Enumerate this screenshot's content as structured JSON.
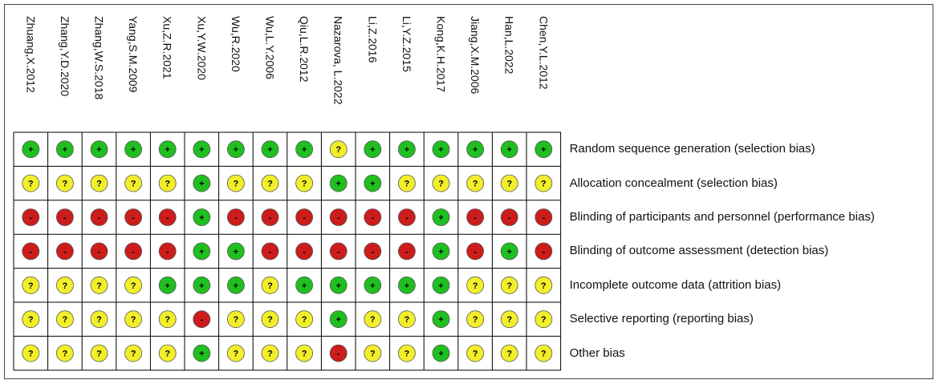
{
  "chart_data": {
    "type": "table",
    "studies": [
      "Zhuang,X.2012",
      "Zhang,Y.D.2020",
      "Zhang,W.S.2018",
      "Yang,S.M.2009",
      "Xu,Z.R.2021",
      "Xu,Y.W.2020",
      "Wu,R.2020",
      "Wu,L.Y.2006",
      "Qiu,L.R.2012",
      "Nazarova, L.2022",
      "Li,Z.2016",
      "Li,Y.Z.2015",
      "Kong,K.H.2017",
      "Jiang,X.M.2006",
      "Han,L.2022",
      "Chen,Y.L.2012"
    ],
    "domains": [
      "Random sequence generation (selection bias)",
      "Allocation concealment (selection bias)",
      "Blinding of participants and personnel (performance bias)",
      "Blinding of outcome assessment (detection bias)",
      "Incomplete outcome data (attrition bias)",
      "Selective reporting (reporting bias)",
      "Other bias"
    ],
    "ratings": [
      [
        "L",
        "L",
        "L",
        "L",
        "L",
        "L",
        "L",
        "L",
        "L",
        "U",
        "L",
        "L",
        "L",
        "L",
        "L",
        "L"
      ],
      [
        "U",
        "U",
        "U",
        "U",
        "U",
        "L",
        "U",
        "U",
        "U",
        "L",
        "L",
        "U",
        "U",
        "U",
        "U",
        "U"
      ],
      [
        "H",
        "H",
        "H",
        "H",
        "H",
        "L",
        "H",
        "H",
        "H",
        "H",
        "H",
        "H",
        "L",
        "H",
        "H",
        "H"
      ],
      [
        "H",
        "H",
        "H",
        "H",
        "H",
        "L",
        "L",
        "H",
        "H",
        "H",
        "H",
        "H",
        "L",
        "H",
        "L",
        "H"
      ],
      [
        "U",
        "U",
        "U",
        "U",
        "L",
        "L",
        "L",
        "U",
        "L",
        "L",
        "L",
        "L",
        "L",
        "U",
        "U",
        "U"
      ],
      [
        "U",
        "U",
        "U",
        "U",
        "U",
        "H",
        "U",
        "U",
        "U",
        "L",
        "U",
        "U",
        "L",
        "U",
        "U",
        "U"
      ],
      [
        "U",
        "U",
        "U",
        "U",
        "U",
        "L",
        "U",
        "U",
        "U",
        "H",
        "U",
        "U",
        "L",
        "U",
        "U",
        "U"
      ]
    ],
    "legend": {
      "L": {
        "symbol": "+",
        "color": "#1fbf1f"
      },
      "U": {
        "symbol": "?",
        "color": "#f2ef2a"
      },
      "H": {
        "symbol": "-",
        "color": "#cc1c1c"
      }
    }
  }
}
